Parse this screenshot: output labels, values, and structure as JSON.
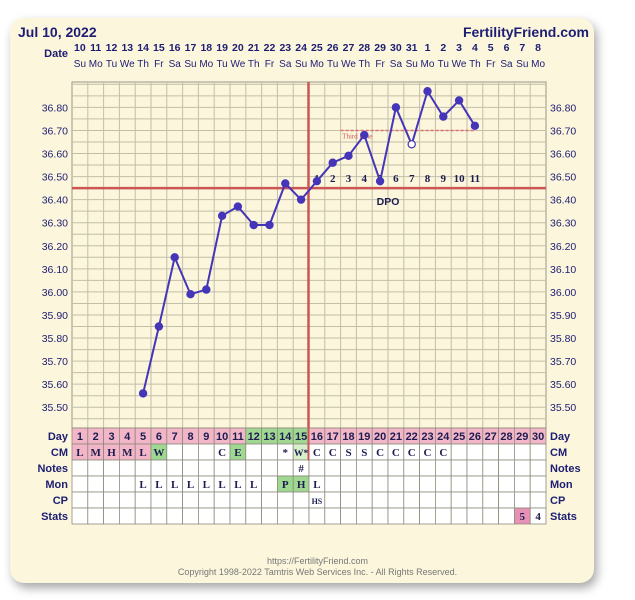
{
  "header": {
    "date": "Jul 10, 2022",
    "brand": "FertilityFriend.com"
  },
  "footer": {
    "url": "https://FertilityFriend.com",
    "copyright": "Copyright 1998-2022 Tamtris Web Services Inc. - All Rights Reserved."
  },
  "colors": {
    "line": "#4535b8",
    "coverline": "#cc5555",
    "grid": "#c2bfa8",
    "pink": "#f3b6c8",
    "green": "#9fd991",
    "dark_pink": "#e891b6"
  },
  "chart_data": {
    "type": "line",
    "date_label": "Date",
    "dates": [
      "10",
      "11",
      "12",
      "13",
      "14",
      "15",
      "16",
      "17",
      "18",
      "19",
      "20",
      "21",
      "22",
      "23",
      "24",
      "25",
      "26",
      "27",
      "28",
      "29",
      "30",
      "31",
      "1",
      "2",
      "3",
      "4",
      "5",
      "6",
      "7",
      "8"
    ],
    "weekdays": [
      "Su",
      "Mo",
      "Tu",
      "We",
      "Th",
      "Fr",
      "Sa",
      "Su",
      "Mo",
      "Tu",
      "We",
      "Th",
      "Fr",
      "Sa",
      "Su",
      "Mo",
      "Tu",
      "We",
      "Th",
      "Fr",
      "Sa",
      "Su",
      "Mo",
      "Tu",
      "We",
      "Th",
      "Fr",
      "Sa",
      "Su",
      "Mo"
    ],
    "y_ticks": [
      "35.50",
      "35.60",
      "35.70",
      "35.80",
      "35.90",
      "36.00",
      "36.10",
      "36.20",
      "36.30",
      "36.40",
      "36.50",
      "36.60",
      "36.70",
      "36.80"
    ],
    "ylim": [
      35.41,
      36.91
    ],
    "temps": [
      {
        "day": 5,
        "t": 35.56
      },
      {
        "day": 6,
        "t": 35.85
      },
      {
        "day": 7,
        "t": 36.15
      },
      {
        "day": 8,
        "t": 35.99
      },
      {
        "day": 9,
        "t": 36.01
      },
      {
        "day": 10,
        "t": 36.33
      },
      {
        "day": 11,
        "t": 36.37
      },
      {
        "day": 12,
        "t": 36.29
      },
      {
        "day": 13,
        "t": 36.29
      },
      {
        "day": 14,
        "t": 36.47
      },
      {
        "day": 15,
        "t": 36.4
      },
      {
        "day": 16,
        "t": 36.48
      },
      {
        "day": 17,
        "t": 36.56
      },
      {
        "day": 18,
        "t": 36.59
      },
      {
        "day": 19,
        "t": 36.68
      },
      {
        "day": 20,
        "t": 36.48
      },
      {
        "day": 21,
        "t": 36.8
      },
      {
        "day": 22,
        "t": 36.64,
        "open": true
      },
      {
        "day": 23,
        "t": 36.87
      },
      {
        "day": 24,
        "t": 36.76
      },
      {
        "day": 25,
        "t": 36.83
      },
      {
        "day": 26,
        "t": 36.72
      }
    ],
    "coverline": 36.45,
    "ovulation_day": 15,
    "third_line": {
      "label": "Third Line",
      "value": 36.7,
      "from_day": 18,
      "to_day": 26
    },
    "dpo": {
      "label": "DPO",
      "start_day": 16,
      "numbers": [
        "1",
        "2",
        "3",
        "4",
        "5",
        "6",
        "7",
        "8",
        "9",
        "10",
        "11"
      ]
    },
    "rows": {
      "day": {
        "label": "Day",
        "values": [
          "1",
          "2",
          "3",
          "4",
          "5",
          "6",
          "7",
          "8",
          "9",
          "10",
          "11",
          "12",
          "13",
          "14",
          "15",
          "16",
          "17",
          "18",
          "19",
          "20",
          "21",
          "22",
          "23",
          "24",
          "25",
          "26",
          "27",
          "28",
          "29",
          "30"
        ]
      },
      "cm": {
        "label": "CM",
        "values": {
          "1": "L",
          "2": "M",
          "3": "H",
          "4": "M",
          "5": "L",
          "6": "W",
          "10": "C",
          "11": "E",
          "14": "*",
          "15": "W*",
          "16": "C",
          "17": "C",
          "18": "S",
          "19": "S",
          "20": "C",
          "21": "C",
          "22": "C",
          "23": "C",
          "24": "C"
        }
      },
      "notes": {
        "label": "Notes",
        "values": {
          "15": "#"
        }
      },
      "mon": {
        "label": "Mon",
        "values": {
          "5": "L",
          "6": "L",
          "7": "L",
          "8": "L",
          "9": "L",
          "10": "L",
          "11": "L",
          "12": "L",
          "14": "P",
          "15": "H",
          "16": "L"
        }
      },
      "cp": {
        "label": "CP",
        "values": {
          "16": "HS"
        }
      },
      "stats": {
        "label": "Stats",
        "values": {
          "29": "5",
          "30": "4"
        }
      }
    },
    "day_cell_colors": {
      "pink": [
        1,
        2,
        3,
        4,
        5,
        6,
        7,
        8,
        9,
        10,
        11,
        16,
        17,
        18,
        19,
        20,
        21,
        22,
        23,
        24,
        25,
        26,
        27,
        28,
        29,
        30
      ],
      "green": [
        12,
        13,
        14,
        15
      ]
    },
    "cm_cell_colors": {
      "pink": [
        1,
        2,
        3,
        4,
        5
      ],
      "green": [
        6,
        11
      ],
      "light_green": [
        15
      ]
    },
    "mon_cell_colors": {
      "green": [
        14,
        15
      ]
    },
    "stats_cell_colors": {
      "dark_pink": [
        29
      ]
    }
  }
}
